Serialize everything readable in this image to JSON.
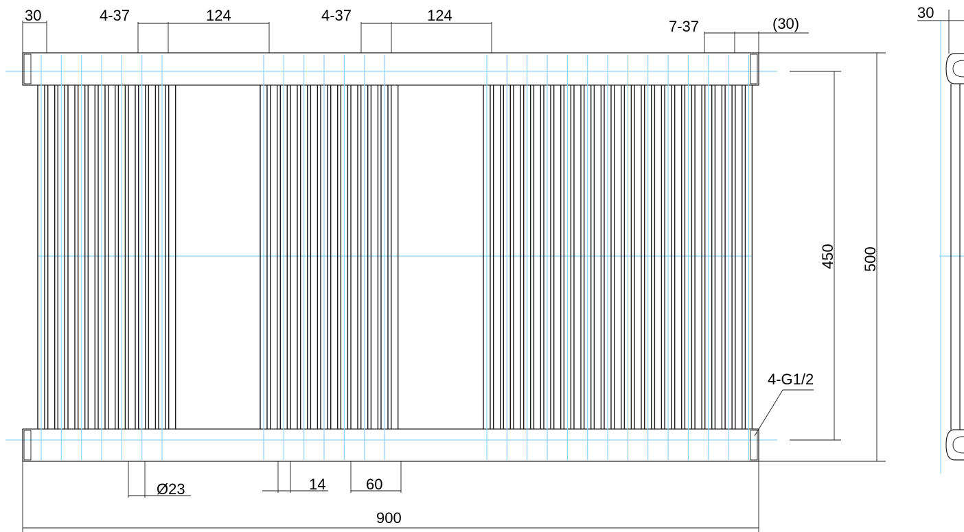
{
  "colors": {
    "outline": "#1a1a1a",
    "centerline": "#8fd3f4",
    "background": "#ffffff",
    "text": "#000000"
  },
  "dimensions": {
    "top_left_30": "30",
    "group1_spacing": "4-37",
    "group1_width": "124",
    "group2_spacing": "4-37",
    "group2_width": "124",
    "right_spacing": "7-37",
    "right_end": "(30)",
    "inner_height": "450",
    "outer_height": "500",
    "connection": "4-G1/2",
    "tube_diameter": "Ø23",
    "tube_gap": "14",
    "group_gap": "60",
    "overall_width": "900",
    "side_view_30": "30"
  }
}
